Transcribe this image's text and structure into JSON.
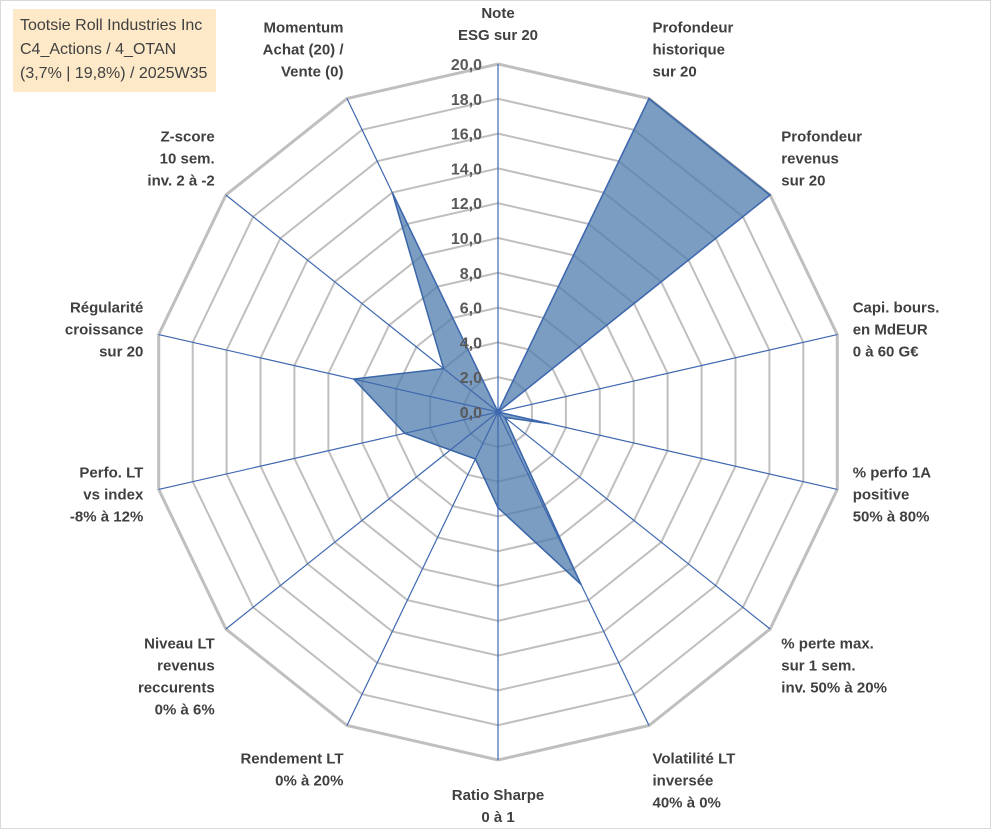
{
  "info_box": {
    "line1": "Tootsie Roll Industries Inc",
    "line2": "C4_Actions / 4_OTAN",
    "line3": "(3,7% | 19,8%) / 2025W35"
  },
  "chart_data": {
    "type": "radar",
    "title": "",
    "rlim": [
      0,
      20
    ],
    "tick_step": 2,
    "tick_labels": [
      "0,0",
      "2,0",
      "4,0",
      "6,0",
      "8,0",
      "10,0",
      "12,0",
      "14,0",
      "16,0",
      "18,0",
      "20,0"
    ],
    "grid": true,
    "axes": [
      {
        "label": [
          "Note",
          "ESG sur 20"
        ]
      },
      {
        "label": [
          "Profondeur",
          "historique",
          "sur 20"
        ]
      },
      {
        "label": [
          "Profondeur",
          "revenus",
          "sur 20"
        ]
      },
      {
        "label": [
          "Capi. bours.",
          "en MdEUR",
          "0 à 60 G€"
        ]
      },
      {
        "label": [
          "% perfo 1A",
          "positive",
          "50% à 80%"
        ]
      },
      {
        "label": [
          "% perte max.",
          "sur 1 sem.",
          "inv. 50% à 20%"
        ]
      },
      {
        "label": [
          "Volatilité LT",
          "inversée",
          "40% à 0%"
        ]
      },
      {
        "label": [
          "Ratio Sharpe",
          "0 à 1"
        ]
      },
      {
        "label": [
          "Rendement LT",
          "0% à 20%"
        ]
      },
      {
        "label": [
          "Niveau LT",
          "revenus",
          "reccurents",
          "0% à 6%"
        ]
      },
      {
        "label": [
          "Perfo. LT",
          "vs index",
          "-8% à 12%"
        ]
      },
      {
        "label": [
          "Régularité",
          "croissance",
          "sur 20"
        ]
      },
      {
        "label": [
          "Z-score",
          "10 sem.",
          "inv. 2 à -2"
        ]
      },
      {
        "label": [
          "Momentum",
          "Achat (20) /",
          "Vente (0)"
        ]
      }
    ],
    "series": [
      {
        "values": [
          0,
          20,
          20,
          0,
          3,
          0.5,
          11,
          5.5,
          3,
          3.5,
          5.5,
          8.5,
          4,
          14
        ],
        "fill": "#4f7cac",
        "stroke": "#3a66a8"
      }
    ],
    "colors": {
      "grid": "#bfbfbf",
      "spoke": "#3f68b0"
    }
  }
}
